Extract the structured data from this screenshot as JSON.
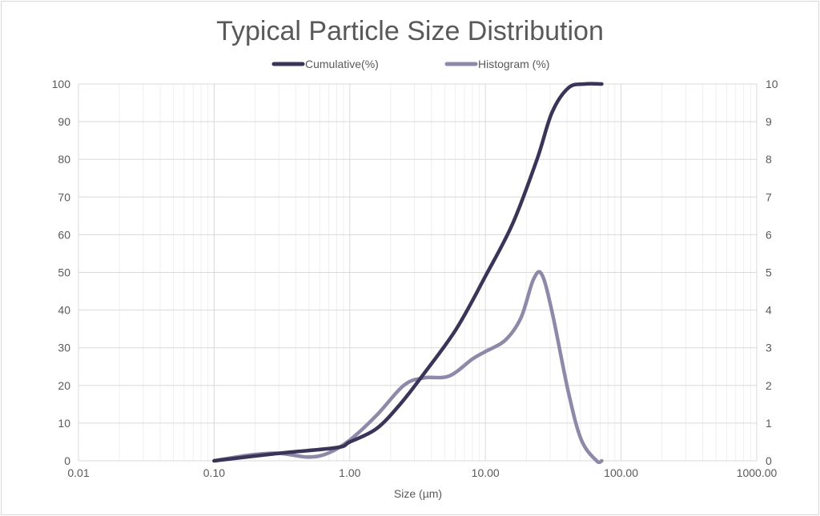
{
  "chart_data": {
    "type": "line",
    "title": "Typical Particle Size Distribution",
    "xlabel": "Size (µm)",
    "ylabel": "",
    "x_scale": "log",
    "xlim": [
      0.01,
      1000
    ],
    "ylim": [
      0,
      100
    ],
    "y2lim": [
      0,
      10
    ],
    "grid": true,
    "legend_position": "top",
    "x_ticks": [
      "0.01",
      "0.10",
      "1.00",
      "10.00",
      "100.00",
      "1000.00"
    ],
    "y_ticks": [
      "0",
      "10",
      "20",
      "30",
      "40",
      "50",
      "60",
      "70",
      "80",
      "90",
      "100"
    ],
    "y2_ticks": [
      "0",
      "1",
      "2",
      "3",
      "4",
      "5",
      "6",
      "7",
      "8",
      "9",
      "10"
    ],
    "colors": {
      "cumulative": "#3b3459",
      "histogram": "#8f89a9",
      "grid": "#e3e3e3",
      "text": "#595959"
    },
    "series": [
      {
        "name": "Cumulative(%)",
        "axis": "left",
        "x": [
          0.1,
          0.3,
          0.8,
          1.0,
          1.57,
          2.35,
          3.5,
          6.1,
          10,
          15.9,
          24,
          31,
          41,
          54,
          72
        ],
        "y": [
          0,
          2,
          3.5,
          5,
          8.5,
          15,
          23,
          35,
          49,
          63,
          80,
          92.5,
          99,
          100,
          100
        ]
      },
      {
        "name": "Histogram (%)",
        "axis": "right",
        "x": [
          0.1,
          0.18,
          0.3,
          0.49,
          0.69,
          1.0,
          1.57,
          2.5,
          3.5,
          5.4,
          8,
          10,
          14,
          18.3,
          22.5,
          26,
          31,
          41,
          51,
          66,
          72
        ],
        "y": [
          0,
          0.15,
          0.2,
          0.1,
          0.2,
          0.55,
          1.2,
          2.0,
          2.2,
          2.25,
          2.7,
          2.9,
          3.2,
          3.8,
          4.8,
          4.95,
          3.95,
          1.8,
          0.55,
          0,
          0
        ]
      }
    ]
  }
}
